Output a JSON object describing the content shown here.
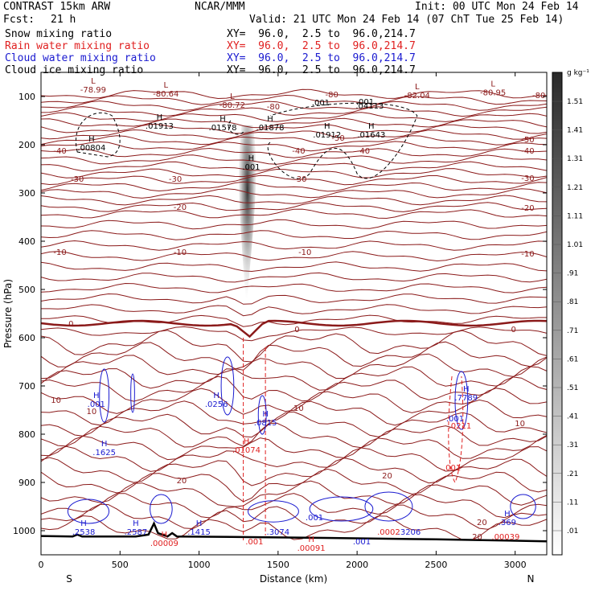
{
  "header": {
    "model": "CONTRAST 15km ARW",
    "org": "NCAR/MMM",
    "init": "Init: 00 UTC Mon 24 Feb 14",
    "fcst_label": "Fcst:",
    "fcst_value": "21 h",
    "valid": "Valid: 21 UTC Mon 24 Feb 14 (07 ChT Tue 25 Feb 14)",
    "fields": [
      {
        "name": "Snow mixing ratio",
        "xy": "XY=  96.0,  2.5 to  96.0,214.7",
        "color": "#000000"
      },
      {
        "name": "Rain water mixing ratio",
        "xy": "XY=  96.0,  2.5 to  96.0,214.7",
        "color": "#e02020"
      },
      {
        "name": "Cloud water mixing ratio",
        "xy": "XY=  96.0,  2.5 to  96.0,214.7",
        "color": "#1a1ad0"
      },
      {
        "name": "Cloud ice mixing ratio",
        "xy": "XY=  96.0,  2.5 to  96.0,214.7",
        "color": "#000000"
      }
    ]
  },
  "chart_data": {
    "type": "cross-section",
    "xlabel": "Distance (km)",
    "ylabel": "Pressure (hPa)",
    "xlim": [
      0,
      3200
    ],
    "ylim": [
      1050,
      50
    ],
    "x_ticks": [
      0,
      500,
      1000,
      1500,
      2000,
      2500,
      3000
    ],
    "y_ticks": [
      100,
      200,
      300,
      400,
      500,
      600,
      700,
      800,
      900,
      1000
    ],
    "x_end_labels": {
      "left": "S",
      "right": "N"
    },
    "colorbar": {
      "unit": "g kg⁻¹",
      "labels": [
        "1.51",
        "1.41",
        "1.31",
        "1.21",
        "1.11",
        "1.01",
        ".91",
        ".81",
        ".71",
        ".61",
        ".51",
        ".41",
        ".31",
        ".21",
        ".11",
        ".01"
      ]
    },
    "temperature_contours": [
      {
        "label": "-80",
        "p": 120
      },
      {
        "label": "-70",
        "p": 145
      },
      {
        "label": "-60",
        "p": 165
      },
      {
        "label": "-50",
        "p": 188
      },
      {
        "label": "-40",
        "p": 212
      },
      {
        "label": "-30",
        "p": 242
      },
      {
        "label": "-20",
        "p": 280
      },
      {
        "label": "-10",
        "p": 322
      },
      {
        "label": "0",
        "p": 570
      },
      {
        "label": "10",
        "p": 700
      },
      {
        "label": "20",
        "p": 895
      }
    ],
    "temperature_labels": [
      {
        "text": "-80",
        "x": 1470,
        "p": 120
      },
      {
        "text": "-80",
        "x": 1840,
        "p": 95
      },
      {
        "text": "-80",
        "x": 3150,
        "p": 97
      },
      {
        "text": "-50",
        "x": 1880,
        "p": 185
      },
      {
        "text": "-50",
        "x": 3080,
        "p": 188
      },
      {
        "text": "-40",
        "x": 120,
        "p": 212
      },
      {
        "text": "-40",
        "x": 1630,
        "p": 212
      },
      {
        "text": "-40",
        "x": 2040,
        "p": 212
      },
      {
        "text": "-40",
        "x": 3080,
        "p": 212
      },
      {
        "text": "-30",
        "x": 230,
        "p": 270
      },
      {
        "text": "-30",
        "x": 850,
        "p": 270
      },
      {
        "text": "-30",
        "x": 1640,
        "p": 270
      },
      {
        "text": "-30",
        "x": 3080,
        "p": 268
      },
      {
        "text": "-20",
        "x": 880,
        "p": 328
      },
      {
        "text": "-20",
        "x": 3080,
        "p": 330
      },
      {
        "text": "-10",
        "x": 120,
        "p": 422
      },
      {
        "text": "-10",
        "x": 880,
        "p": 422
      },
      {
        "text": "-10",
        "x": 1670,
        "p": 422
      },
      {
        "text": "-10",
        "x": 3080,
        "p": 425
      },
      {
        "text": "0",
        "x": 190,
        "p": 570
      },
      {
        "text": "0",
        "x": 1620,
        "p": 582
      },
      {
        "text": "0",
        "x": 2990,
        "p": 582
      },
      {
        "text": "10",
        "x": 95,
        "p": 728
      },
      {
        "text": "10",
        "x": 320,
        "p": 752
      },
      {
        "text": "10",
        "x": 1630,
        "p": 745
      },
      {
        "text": "10",
        "x": 3030,
        "p": 777
      },
      {
        "text": "20",
        "x": 890,
        "p": 895
      },
      {
        "text": "20",
        "x": 2190,
        "p": 885
      },
      {
        "text": "20",
        "x": 2790,
        "p": 982
      }
    ],
    "extrema": [
      {
        "type": "L",
        "value": "-78.99",
        "x": 330,
        "p": 83,
        "color": "#8b1a1a"
      },
      {
        "type": "L",
        "value": "-80.64",
        "x": 790,
        "p": 92,
        "color": "#8b1a1a"
      },
      {
        "type": "L",
        "value": "-80.72",
        "x": 1210,
        "p": 115,
        "color": "#8b1a1a"
      },
      {
        "type": "L",
        "value": "-82.04",
        "x": 2380,
        "p": 95,
        "color": "#8b1a1a"
      },
      {
        "type": "L",
        "value": "-80.95",
        "x": 2860,
        "p": 89,
        "color": "#8b1a1a"
      },
      {
        "type": "",
        "value": ".001",
        "x": 1770,
        "p": 110,
        "color": "#000000"
      },
      {
        "type": "",
        "value": ".001",
        "x": 2050,
        "p": 108,
        "color": "#000000"
      },
      {
        "type": "",
        "value": ".04113",
        "x": 2080,
        "p": 117,
        "color": "#000000"
      },
      {
        "type": "H",
        "value": ".01913",
        "x": 750,
        "p": 158,
        "color": "#000000"
      },
      {
        "type": "H",
        "value": ".01578",
        "x": 1150,
        "p": 162,
        "color": "#000000"
      },
      {
        "type": "H",
        "value": ".01878",
        "x": 1450,
        "p": 162,
        "color": "#000000"
      },
      {
        "type": "H",
        "value": ".01912",
        "x": 1810,
        "p": 177,
        "color": "#000000"
      },
      {
        "type": "H",
        "value": ".01643",
        "x": 2090,
        "p": 177,
        "color": "#000000"
      },
      {
        "type": "H",
        "value": ".00804",
        "x": 320,
        "p": 203,
        "color": "#000000"
      },
      {
        "type": "H",
        "value": ".001",
        "x": 1330,
        "p": 243,
        "color": "#000000"
      },
      {
        "type": "H",
        "value": ".001",
        "x": 350,
        "p": 735,
        "color": "#1a1ad0"
      },
      {
        "type": "H",
        "value": ".0256",
        "x": 1110,
        "p": 735,
        "color": "#1a1ad0"
      },
      {
        "type": "H",
        "value": ".0815",
        "x": 1420,
        "p": 773,
        "color": "#1a1ad0"
      },
      {
        "type": "H",
        "value": ".1625",
        "x": 400,
        "p": 835,
        "color": "#1a1ad0"
      },
      {
        "type": "H",
        "value": ".01074",
        "x": 1300,
        "p": 830,
        "color": "#e02020"
      },
      {
        "type": "H",
        "value": ".7789",
        "x": 2690,
        "p": 722,
        "color": "#1a1ad0"
      },
      {
        "type": "",
        "value": ".001",
        "x": 2620,
        "p": 765,
        "color": "#1a1ad0"
      },
      {
        "type": "",
        "value": ".0211",
        "x": 2650,
        "p": 780,
        "color": "#e02020"
      },
      {
        "type": "",
        "value": ".001",
        "x": 2600,
        "p": 867,
        "color": "#e02020"
      },
      {
        "type": "H",
        "value": ".2538",
        "x": 270,
        "p": 1000,
        "color": "#1a1ad0"
      },
      {
        "type": "H",
        "value": ".2587",
        "x": 600,
        "p": 1000,
        "color": "#1a1ad0"
      },
      {
        "type": "H",
        "value": ".00009",
        "x": 780,
        "p": 1023,
        "color": "#e02020"
      },
      {
        "type": "H",
        "value": ".1415",
        "x": 1000,
        "p": 1000,
        "color": "#1a1ad0"
      },
      {
        "type": "",
        "value": ".001",
        "x": 1350,
        "p": 1020,
        "color": "#e02020"
      },
      {
        "type": "",
        "value": ".3074",
        "x": 1500,
        "p": 1000,
        "color": "#1a1ad0"
      },
      {
        "type": "",
        "value": ".001",
        "x": 1730,
        "p": 970,
        "color": "#1a1ad0"
      },
      {
        "type": "H",
        "value": ".00091",
        "x": 1710,
        "p": 1033,
        "color": "#e02020"
      },
      {
        "type": "",
        "value": ".001",
        "x": 2030,
        "p": 1020,
        "color": "#1a1ad0"
      },
      {
        "type": "",
        "value": ".0002",
        "x": 2200,
        "p": 1000,
        "color": "#e02020"
      },
      {
        "type": "",
        "value": ".3206",
        "x": 2330,
        "p": 1000,
        "color": "#1a1ad0"
      },
      {
        "type": "H",
        "value": ".369",
        "x": 2950,
        "p": 980,
        "color": "#1a1ad0"
      },
      {
        "type": "",
        "value": ".00039",
        "x": 2940,
        "p": 1010,
        "color": "#e02020"
      },
      {
        "type": "",
        "value": "20",
        "x": 2760,
        "p": 1010,
        "color": "#8b1a1a"
      }
    ],
    "surface_pressure": [
      [
        0,
        1011
      ],
      [
        200,
        1012
      ],
      [
        230,
        1008
      ],
      [
        260,
        1012
      ],
      [
        600,
        1012
      ],
      [
        680,
        1008
      ],
      [
        715,
        985
      ],
      [
        740,
        1005
      ],
      [
        800,
        1012
      ],
      [
        830,
        1005
      ],
      [
        860,
        1012
      ],
      [
        1200,
        1013
      ],
      [
        1800,
        1015
      ],
      [
        2500,
        1018
      ],
      [
        3200,
        1022
      ]
    ],
    "snow_plume": {
      "x": 1300,
      "p_top": 160,
      "p_bottom": 540,
      "max": 1.4
    }
  }
}
